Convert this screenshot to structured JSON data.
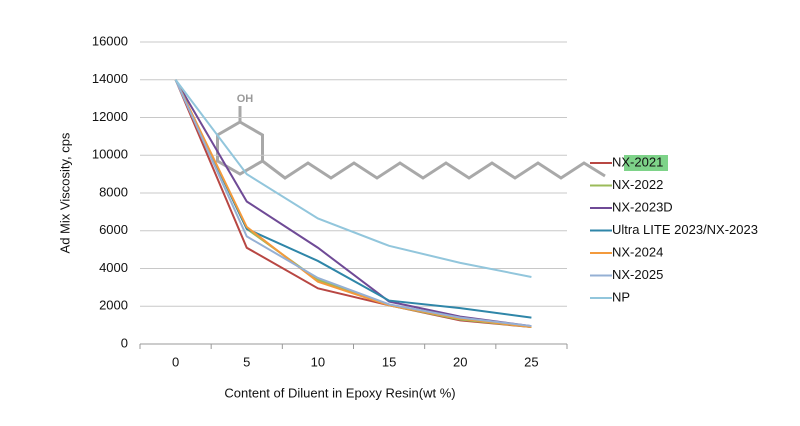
{
  "chart_data": {
    "type": "line",
    "x_label": "Content of Diluent in Epoxy Resin(wt %)",
    "y_label": "Ad Mix Viscosity, cps",
    "annotation": "OH",
    "categories": [
      "0",
      "5",
      "10",
      "15",
      "20",
      "25"
    ],
    "ylim": [
      0,
      16000
    ],
    "yticks": [
      0,
      2000,
      4000,
      6000,
      8000,
      10000,
      12000,
      14000,
      16000
    ],
    "grid": true,
    "legend": "right",
    "series": [
      {
        "name": "NX-2021",
        "color": "#b84743",
        "values": [
          14000,
          5100,
          2950,
          2050,
          1250,
          900
        ]
      },
      {
        "name": "NX-2022",
        "color": "#9bbb59",
        "values": [
          14000,
          6100,
          3400,
          2050,
          1300,
          900
        ]
      },
      {
        "name": "NX-2023D",
        "color": "#6f4a96",
        "values": [
          14000,
          7550,
          5100,
          2250,
          1450,
          950
        ]
      },
      {
        "name": "Ultra LITE 2023/NX-2023",
        "color": "#2f86a8",
        "values": [
          14000,
          6100,
          4400,
          2300,
          1900,
          1400
        ]
      },
      {
        "name": "NX-2024",
        "color": "#f39a3c",
        "values": [
          14000,
          6200,
          3300,
          2050,
          1350,
          900
        ]
      },
      {
        "name": "NX-2025",
        "color": "#95b0d4",
        "values": [
          14000,
          5700,
          3500,
          2100,
          1400,
          950
        ]
      },
      {
        "name": "NP",
        "color": "#92c6dc",
        "values": [
          14000,
          9000,
          6650,
          5200,
          4300,
          3550
        ]
      }
    ]
  }
}
